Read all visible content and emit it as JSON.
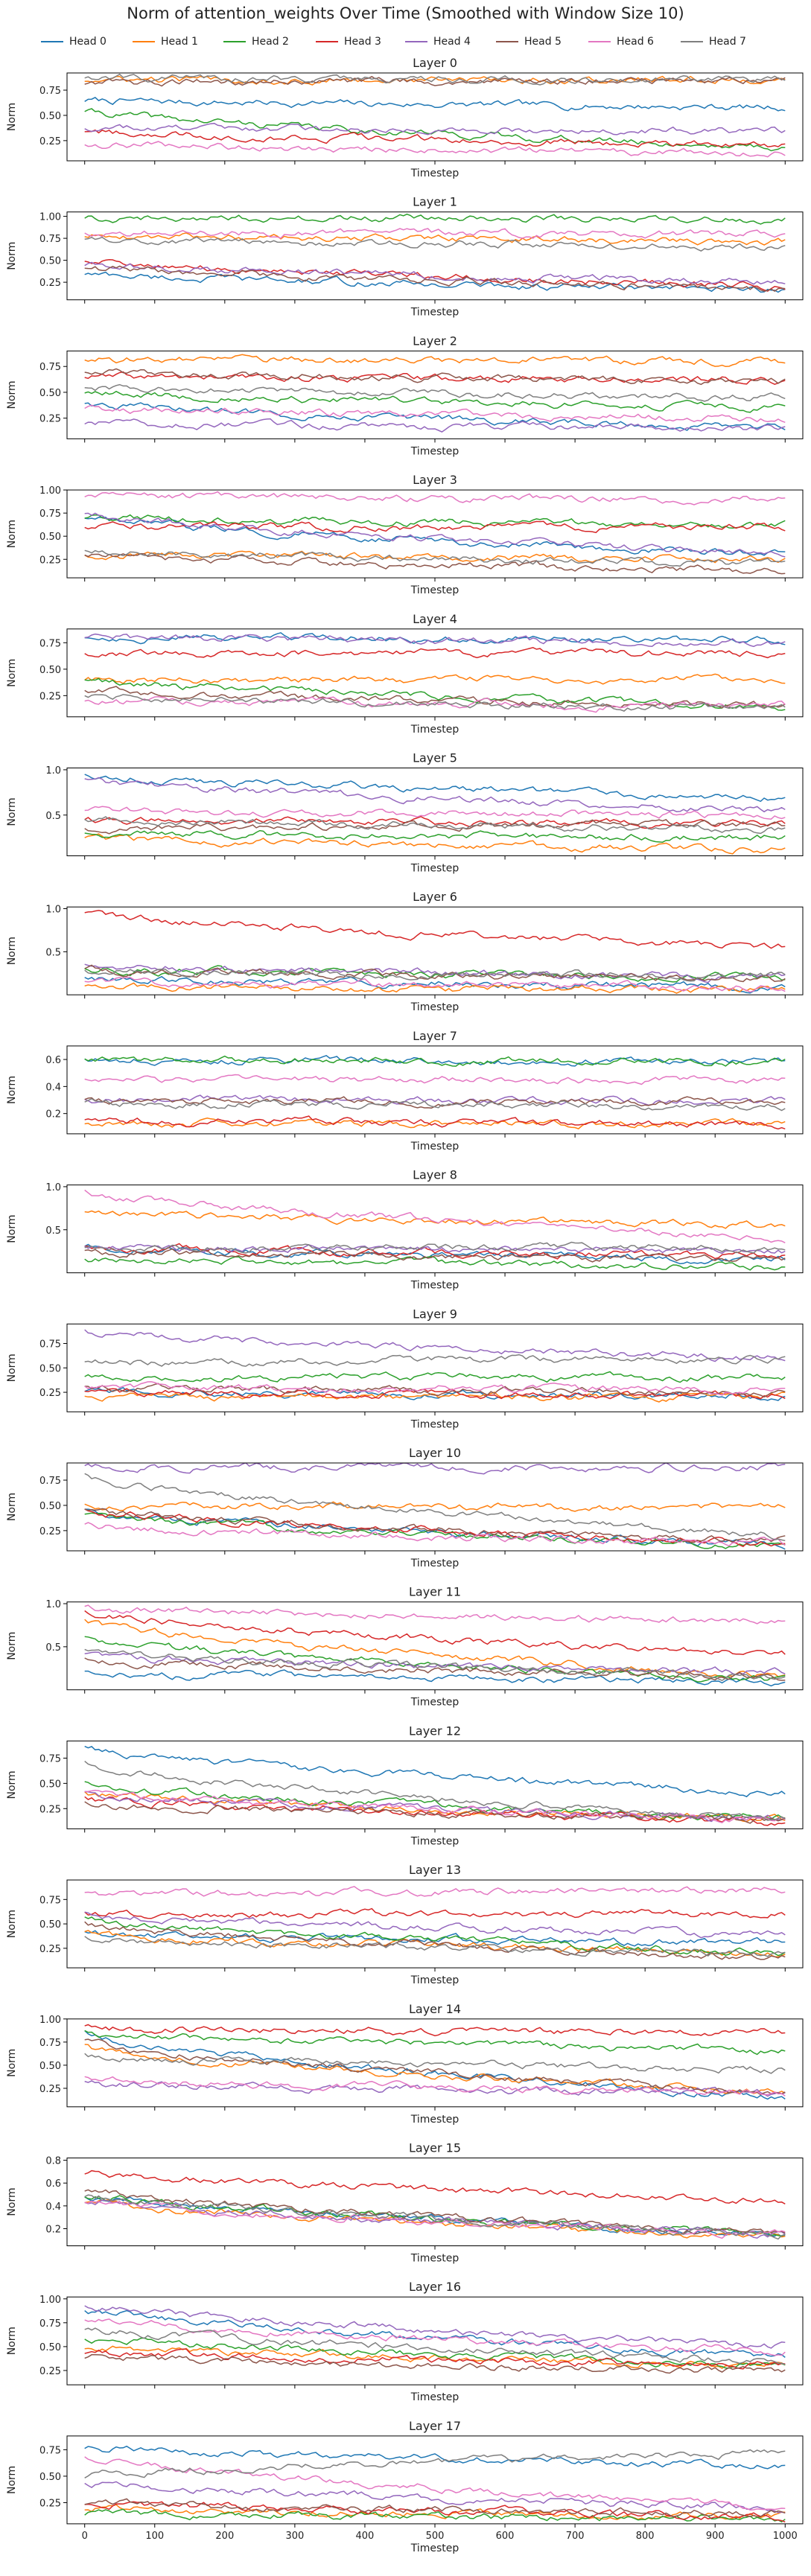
{
  "title": "Norm of attention_weights Over Time (Smoothed with Window Size 10)",
  "colors": [
    "#1f77b4",
    "#ff7f0e",
    "#2ca02c",
    "#d62728",
    "#9467bd",
    "#8c564b",
    "#e377c2",
    "#7f7f7f"
  ],
  "chart_data": {
    "type": "line",
    "xlabel": "Timestep",
    "ylabel": "Norm",
    "xlim": [
      0,
      1000
    ],
    "x_ticks": [
      0,
      100,
      200,
      300,
      400,
      500,
      600,
      700,
      800,
      900,
      1000
    ],
    "x_tick_labels_shown_on": "Layer 17",
    "legend_placement": "top",
    "series_names": [
      "Head 0",
      "Head 1",
      "Head 2",
      "Head 3",
      "Head 4",
      "Head 5",
      "Head 6",
      "Head 7"
    ],
    "layers": [
      {
        "title": "Layer 0",
        "ylim": [
          0.05,
          0.92
        ],
        "yticks": [
          0.25,
          0.5,
          0.75
        ],
        "ytick_labels": [
          "0.25",
          "0.50",
          "0.75"
        ],
        "series_levels": [
          [
            0.65,
            0.58
          ],
          [
            0.85,
            0.85
          ],
          [
            0.55,
            0.18
          ],
          [
            0.35,
            0.2
          ],
          [
            0.38,
            0.35
          ],
          [
            0.82,
            0.85
          ],
          [
            0.22,
            0.12
          ],
          [
            0.88,
            0.85
          ]
        ]
      },
      {
        "title": "Layer 1",
        "ylim": [
          0.05,
          1.05
        ],
        "yticks": [
          0.25,
          0.5,
          0.75,
          1.0
        ],
        "ytick_labels": [
          "0.25",
          "0.50",
          "0.75",
          "1.00"
        ],
        "series_levels": [
          [
            0.35,
            0.15
          ],
          [
            0.78,
            0.72
          ],
          [
            0.99,
            0.97
          ],
          [
            0.5,
            0.2
          ],
          [
            0.45,
            0.25
          ],
          [
            0.42,
            0.18
          ],
          [
            0.82,
            0.8
          ],
          [
            0.75,
            0.65
          ]
        ]
      },
      {
        "title": "Layer 2",
        "ylim": [
          0.05,
          0.9
        ],
        "yticks": [
          0.25,
          0.5,
          0.75
        ],
        "ytick_labels": [
          "0.25",
          "0.50",
          "0.75"
        ],
        "series_levels": [
          [
            0.4,
            0.15
          ],
          [
            0.82,
            0.8
          ],
          [
            0.5,
            0.35
          ],
          [
            0.65,
            0.62
          ],
          [
            0.2,
            0.15
          ],
          [
            0.7,
            0.6
          ],
          [
            0.35,
            0.25
          ],
          [
            0.55,
            0.45
          ]
        ]
      },
      {
        "title": "Layer 3",
        "ylim": [
          0.05,
          1.0
        ],
        "yticks": [
          0.25,
          0.5,
          0.75,
          1.0
        ],
        "ytick_labels": [
          "0.25",
          "0.50",
          "0.75",
          "1.00"
        ],
        "series_levels": [
          [
            0.7,
            0.3
          ],
          [
            0.3,
            0.25
          ],
          [
            0.7,
            0.62
          ],
          [
            0.6,
            0.6
          ],
          [
            0.75,
            0.3
          ],
          [
            0.3,
            0.12
          ],
          [
            0.93,
            0.9
          ],
          [
            0.35,
            0.2
          ]
        ]
      },
      {
        "title": "Layer 4",
        "ylim": [
          0.05,
          0.88
        ],
        "yticks": [
          0.25,
          0.5,
          0.75
        ],
        "ytick_labels": [
          "0.25",
          "0.50",
          "0.75"
        ],
        "series_levels": [
          [
            0.8,
            0.78
          ],
          [
            0.4,
            0.4
          ],
          [
            0.4,
            0.15
          ],
          [
            0.65,
            0.65
          ],
          [
            0.8,
            0.75
          ],
          [
            0.3,
            0.15
          ],
          [
            0.2,
            0.15
          ],
          [
            0.25,
            0.12
          ]
        ]
      },
      {
        "title": "Layer 5",
        "ylim": [
          0.05,
          1.02
        ],
        "yticks": [
          0.5,
          1.0
        ],
        "ytick_labels": [
          "0.5",
          "1.0"
        ],
        "series_levels": [
          [
            0.95,
            0.7
          ],
          [
            0.25,
            0.12
          ],
          [
            0.3,
            0.25
          ],
          [
            0.45,
            0.4
          ],
          [
            0.9,
            0.55
          ],
          [
            0.35,
            0.4
          ],
          [
            0.55,
            0.5
          ],
          [
            0.45,
            0.35
          ]
        ]
      },
      {
        "title": "Layer 6",
        "ylim": [
          0.0,
          1.02
        ],
        "yticks": [
          0.5,
          1.0
        ],
        "ytick_labels": [
          "0.5",
          "1.0"
        ],
        "series_levels": [
          [
            0.2,
            0.1
          ],
          [
            0.1,
            0.05
          ],
          [
            0.3,
            0.2
          ],
          [
            0.95,
            0.55
          ],
          [
            0.35,
            0.2
          ],
          [
            0.3,
            0.18
          ],
          [
            0.15,
            0.08
          ],
          [
            0.28,
            0.22
          ]
        ]
      },
      {
        "title": "Layer 7",
        "ylim": [
          0.05,
          0.7
        ],
        "yticks": [
          0.2,
          0.4,
          0.6
        ],
        "ytick_labels": [
          "0.2",
          "0.4",
          "0.6"
        ],
        "series_levels": [
          [
            0.6,
            0.58
          ],
          [
            0.12,
            0.13
          ],
          [
            0.6,
            0.58
          ],
          [
            0.15,
            0.12
          ],
          [
            0.3,
            0.3
          ],
          [
            0.3,
            0.28
          ],
          [
            0.45,
            0.45
          ],
          [
            0.28,
            0.25
          ]
        ]
      },
      {
        "title": "Layer 8",
        "ylim": [
          0.0,
          1.02
        ],
        "yticks": [
          0.5,
          1.0
        ],
        "ytick_labels": [
          "0.5",
          "1.0"
        ],
        "series_levels": [
          [
            0.3,
            0.15
          ],
          [
            0.7,
            0.55
          ],
          [
            0.15,
            0.08
          ],
          [
            0.3,
            0.2
          ],
          [
            0.3,
            0.25
          ],
          [
            0.25,
            0.15
          ],
          [
            0.95,
            0.4
          ],
          [
            0.28,
            0.3
          ]
        ]
      },
      {
        "title": "Layer 9",
        "ylim": [
          0.05,
          0.95
        ],
        "yticks": [
          0.25,
          0.5,
          0.75
        ],
        "ytick_labels": [
          "0.25",
          "0.50",
          "0.75"
        ],
        "series_levels": [
          [
            0.25,
            0.22
          ],
          [
            0.2,
            0.2
          ],
          [
            0.4,
            0.4
          ],
          [
            0.25,
            0.22
          ],
          [
            0.88,
            0.6
          ],
          [
            0.3,
            0.25
          ],
          [
            0.3,
            0.28
          ],
          [
            0.55,
            0.6
          ]
        ]
      },
      {
        "title": "Layer 10",
        "ylim": [
          0.05,
          0.92
        ],
        "yticks": [
          0.25,
          0.5,
          0.75
        ],
        "ytick_labels": [
          "0.25",
          "0.50",
          "0.75"
        ],
        "series_levels": [
          [
            0.45,
            0.1
          ],
          [
            0.5,
            0.48
          ],
          [
            0.4,
            0.1
          ],
          [
            0.45,
            0.12
          ],
          [
            0.88,
            0.88
          ],
          [
            0.45,
            0.15
          ],
          [
            0.3,
            0.12
          ],
          [
            0.8,
            0.2
          ]
        ]
      },
      {
        "title": "Layer 11",
        "ylim": [
          0.0,
          1.02
        ],
        "yticks": [
          0.5,
          1.0
        ],
        "ytick_labels": [
          "0.5",
          "1.0"
        ],
        "series_levels": [
          [
            0.2,
            0.1
          ],
          [
            0.8,
            0.15
          ],
          [
            0.6,
            0.1
          ],
          [
            0.9,
            0.4
          ],
          [
            0.4,
            0.2
          ],
          [
            0.35,
            0.15
          ],
          [
            0.95,
            0.8
          ],
          [
            0.45,
            0.15
          ]
        ]
      },
      {
        "title": "Layer 12",
        "ylim": [
          0.05,
          0.92
        ],
        "yticks": [
          0.25,
          0.5,
          0.75
        ],
        "ytick_labels": [
          "0.25",
          "0.50",
          "0.75"
        ],
        "series_levels": [
          [
            0.85,
            0.4
          ],
          [
            0.4,
            0.15
          ],
          [
            0.5,
            0.15
          ],
          [
            0.35,
            0.12
          ],
          [
            0.4,
            0.15
          ],
          [
            0.3,
            0.15
          ],
          [
            0.4,
            0.15
          ],
          [
            0.7,
            0.15
          ]
        ]
      },
      {
        "title": "Layer 13",
        "ylim": [
          0.05,
          0.95
        ],
        "yticks": [
          0.25,
          0.5,
          0.75
        ],
        "ytick_labels": [
          "0.25",
          "0.50",
          "0.75"
        ],
        "series_levels": [
          [
            0.4,
            0.3
          ],
          [
            0.4,
            0.2
          ],
          [
            0.55,
            0.2
          ],
          [
            0.6,
            0.6
          ],
          [
            0.6,
            0.38
          ],
          [
            0.5,
            0.15
          ],
          [
            0.8,
            0.85
          ],
          [
            0.35,
            0.2
          ]
        ]
      },
      {
        "title": "Layer 14",
        "ylim": [
          0.05,
          1.0
        ],
        "yticks": [
          0.25,
          0.5,
          0.75,
          1.0
        ],
        "ytick_labels": [
          "0.25",
          "0.50",
          "0.75",
          "1.00"
        ],
        "series_levels": [
          [
            0.85,
            0.15
          ],
          [
            0.7,
            0.2
          ],
          [
            0.85,
            0.65
          ],
          [
            0.9,
            0.85
          ],
          [
            0.3,
            0.2
          ],
          [
            0.75,
            0.2
          ],
          [
            0.35,
            0.2
          ],
          [
            0.6,
            0.45
          ]
        ]
      },
      {
        "title": "Layer 15",
        "ylim": [
          0.05,
          0.82
        ],
        "yticks": [
          0.2,
          0.4,
          0.6,
          0.8
        ],
        "ytick_labels": [
          "0.2",
          "0.4",
          "0.6",
          "0.8"
        ],
        "series_levels": [
          [
            0.5,
            0.15
          ],
          [
            0.45,
            0.12
          ],
          [
            0.5,
            0.15
          ],
          [
            0.7,
            0.45
          ],
          [
            0.45,
            0.15
          ],
          [
            0.55,
            0.15
          ],
          [
            0.45,
            0.15
          ],
          [
            0.5,
            0.15
          ]
        ]
      },
      {
        "title": "Layer 16",
        "ylim": [
          0.1,
          1.02
        ],
        "yticks": [
          0.25,
          0.5,
          0.75,
          1.0
        ],
        "ytick_labels": [
          "0.25",
          "0.50",
          "0.75",
          "1.00"
        ],
        "series_levels": [
          [
            0.9,
            0.4
          ],
          [
            0.5,
            0.3
          ],
          [
            0.6,
            0.3
          ],
          [
            0.45,
            0.3
          ],
          [
            0.95,
            0.5
          ],
          [
            0.4,
            0.25
          ],
          [
            0.8,
            0.45
          ],
          [
            0.7,
            0.35
          ]
        ]
      },
      {
        "title": "Layer 17",
        "ylim": [
          0.05,
          0.88
        ],
        "yticks": [
          0.25,
          0.5,
          0.75
        ],
        "ytick_labels": [
          "0.25",
          "0.50",
          "0.75"
        ],
        "series_levels": [
          [
            0.78,
            0.6
          ],
          [
            0.2,
            0.12
          ],
          [
            0.15,
            0.1
          ],
          [
            0.25,
            0.12
          ],
          [
            0.45,
            0.2
          ],
          [
            0.25,
            0.15
          ],
          [
            0.7,
            0.2
          ],
          [
            0.5,
            0.72
          ]
        ]
      }
    ]
  }
}
